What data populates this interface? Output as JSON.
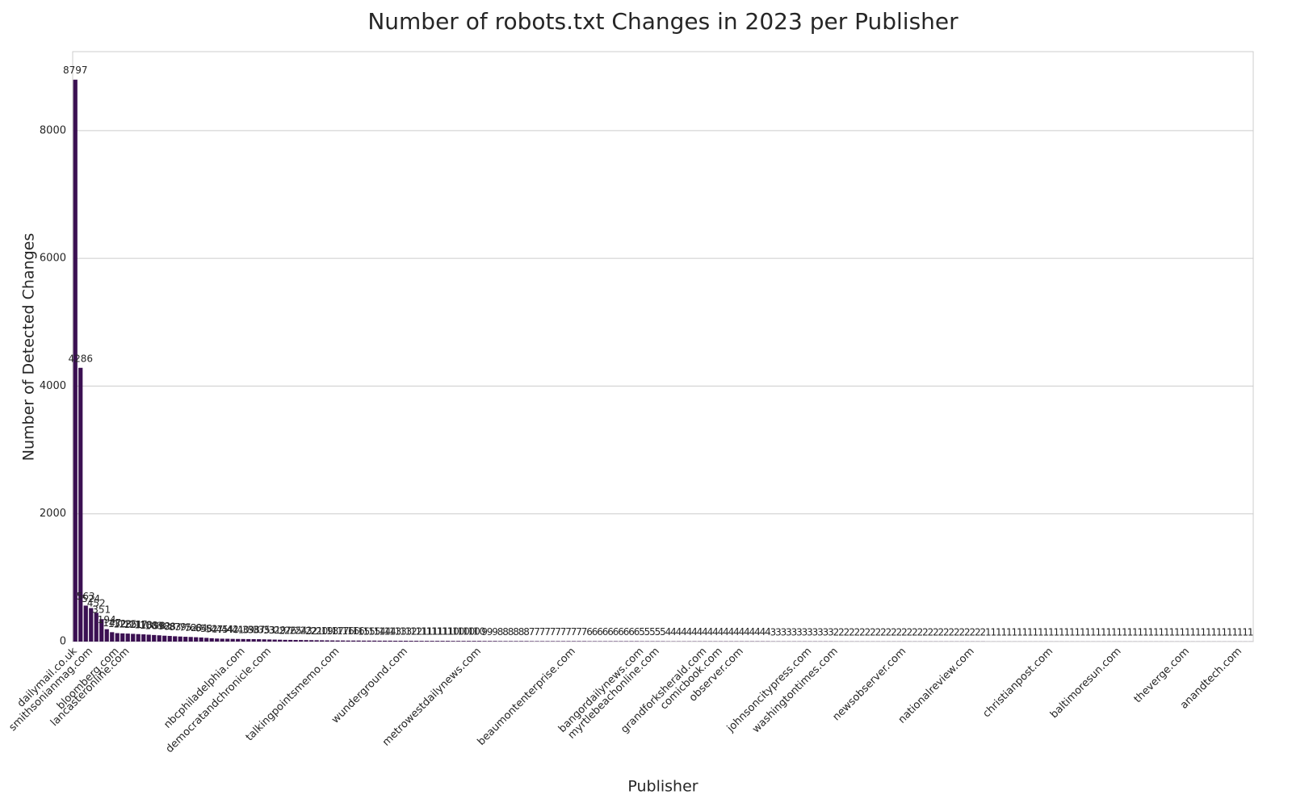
{
  "chart_data": {
    "type": "bar",
    "title": "Number of robots.txt Changes in 2023 per Publisher",
    "xlabel": "Publisher",
    "ylabel": "Number of Detected Changes",
    "color": "#3b1052",
    "grid": true,
    "ylim": [
      0,
      9236
    ],
    "yticks": [
      0,
      2000,
      4000,
      6000,
      8000
    ],
    "categories": [
      "dailymail.co.uk",
      null,
      null,
      "smithsonianmag.com",
      null,
      null,
      null,
      null,
      "bloomberg.com",
      null,
      "lancasteronline.com",
      null,
      null,
      null,
      null,
      null,
      null,
      null,
      null,
      null,
      null,
      null,
      null,
      null,
      null,
      null,
      null,
      null,
      null,
      null,
      null,
      null,
      "nbcphiladelphia.com",
      null,
      null,
      null,
      null,
      "democratandchronicle.com",
      null,
      null,
      null,
      null,
      null,
      null,
      null,
      null,
      null,
      null,
      null,
      null,
      "talkingpointsmemo.com",
      null,
      null,
      null,
      null,
      null,
      null,
      null,
      null,
      null,
      null,
      null,
      null,
      "wunderground.com",
      null,
      null,
      null,
      null,
      null,
      null,
      null,
      null,
      null,
      null,
      null,
      null,
      null,
      "metrowestdailynews.com",
      null,
      null,
      null,
      null,
      null,
      null,
      null,
      null,
      null,
      null,
      null,
      null,
      null,
      null,
      null,
      null,
      null,
      "beaumontenterprise.com",
      null,
      null,
      null,
      null,
      null,
      null,
      null,
      null,
      null,
      null,
      null,
      null,
      "bangordailynews.com",
      null,
      null,
      "myrtlebeachonline.com",
      null,
      null,
      null,
      null,
      null,
      null,
      null,
      null,
      "grandforksherald.com",
      null,
      null,
      "comicbook.com",
      null,
      null,
      null,
      "observer.com",
      null,
      null,
      null,
      null,
      null,
      null,
      null,
      null,
      null,
      null,
      null,
      null,
      "johnsoncitypress.com",
      null,
      null,
      null,
      null,
      "washingtontimes.com",
      null,
      null,
      null,
      null,
      null,
      null,
      null,
      null,
      null,
      null,
      null,
      null,
      "newsobserver.com",
      null,
      null,
      null,
      null,
      null,
      null,
      null,
      null,
      null,
      null,
      null,
      null,
      "nationalreview.com",
      null,
      null,
      null,
      null,
      null,
      null,
      null,
      null,
      null,
      null,
      null,
      null,
      null,
      null,
      "christianpost.com",
      null,
      null,
      null,
      null,
      null,
      null,
      null,
      null,
      null,
      null,
      null,
      null,
      "baltimoresun.com",
      null,
      null,
      null,
      null,
      null,
      null,
      null,
      null,
      null,
      null,
      null,
      null,
      "theverge.com",
      null,
      null,
      null,
      null,
      null,
      null,
      null,
      null,
      null,
      "anandtech.com",
      null,
      null
    ],
    "values": [
      8797,
      4286,
      563,
      524,
      452,
      351,
      194,
      147,
      132,
      128,
      125,
      121,
      117,
      113,
      108,
      103,
      98,
      92,
      88,
      83,
      79,
      75,
      72,
      68,
      64,
      58,
      52,
      47,
      45,
      44,
      42,
      41,
      40,
      39,
      38,
      37,
      35,
      33,
      31,
      29,
      27,
      26,
      25,
      24,
      23,
      22,
      21,
      20,
      19,
      18,
      17,
      17,
      16,
      16,
      16,
      15,
      15,
      15,
      14,
      14,
      14,
      13,
      13,
      13,
      12,
      12,
      11,
      11,
      11,
      11,
      11,
      11,
      10,
      10,
      10,
      10,
      10,
      10,
      9,
      9,
      9,
      8,
      8,
      8,
      8,
      8,
      8,
      7,
      7,
      7,
      7,
      7,
      7,
      7,
      7,
      7,
      7,
      7,
      6,
      6,
      6,
      6,
      6,
      6,
      6,
      6,
      6,
      6,
      5,
      5,
      5,
      5,
      5,
      4,
      4,
      4,
      4,
      4,
      4,
      4,
      4,
      4,
      4,
      4,
      4,
      4,
      4,
      4,
      4,
      4,
      4,
      4,
      4,
      3,
      3,
      3,
      3,
      3,
      3,
      3,
      3,
      3,
      3,
      3,
      3,
      2,
      2,
      2,
      2,
      2,
      2,
      2,
      2,
      2,
      2,
      2,
      2,
      2,
      2,
      2,
      2,
      2,
      2,
      2,
      2,
      2,
      2,
      2,
      2,
      2,
      2,
      2,
      2,
      2,
      1,
      1,
      1,
      1,
      1,
      1,
      1,
      1,
      1,
      1,
      1,
      1,
      1,
      1,
      1,
      1,
      1,
      1,
      1,
      1,
      1,
      1,
      1,
      1,
      1,
      1,
      1,
      1,
      1,
      1,
      1,
      1,
      1,
      1,
      1,
      1,
      1,
      1,
      1,
      1,
      1,
      1,
      1,
      1,
      1,
      1,
      1,
      1,
      1,
      1,
      1
    ]
  }
}
